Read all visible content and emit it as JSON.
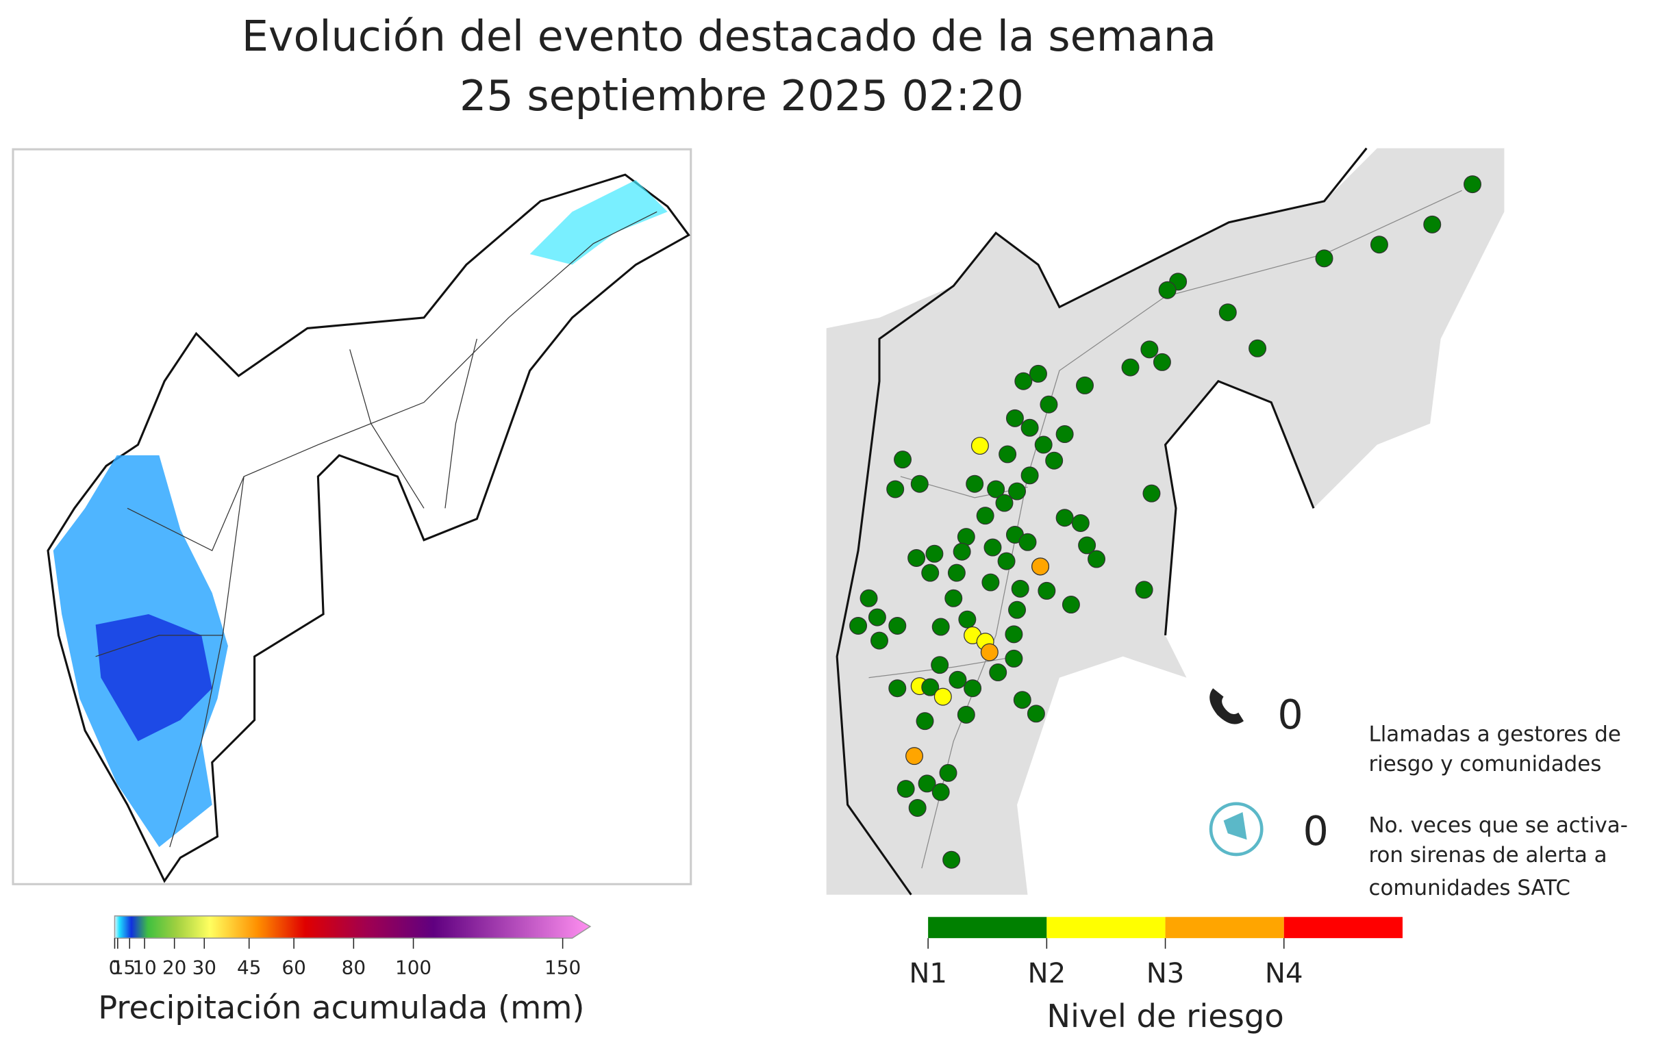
{
  "title": [
    "Evolución del evento destacado de la semana",
    "25 septiembre 2025 02:20"
  ],
  "precip_legend": {
    "title": "Precipitación acumulada (mm)",
    "range": [
      0,
      150
    ],
    "ticks": [
      0,
      1,
      5,
      10,
      20,
      30,
      45,
      60,
      80,
      100,
      150
    ]
  },
  "risk_legend": {
    "title": "Nivel de riesgo",
    "levels": [
      {
        "label": "N1",
        "color": "#008000"
      },
      {
        "label": "N2",
        "color": "#ffff00"
      },
      {
        "label": "N3",
        "color": "#ffa500"
      },
      {
        "label": "N4",
        "color": "#ff0000"
      }
    ]
  },
  "calls": {
    "count": 0,
    "label": [
      "Llamadas a gestores de",
      "riesgo y comunidades"
    ]
  },
  "sirens": {
    "count": 0,
    "label": [
      "No. veces que se activa-",
      "ron sirenas de alerta a",
      "comunidades SATC"
    ]
  }
}
